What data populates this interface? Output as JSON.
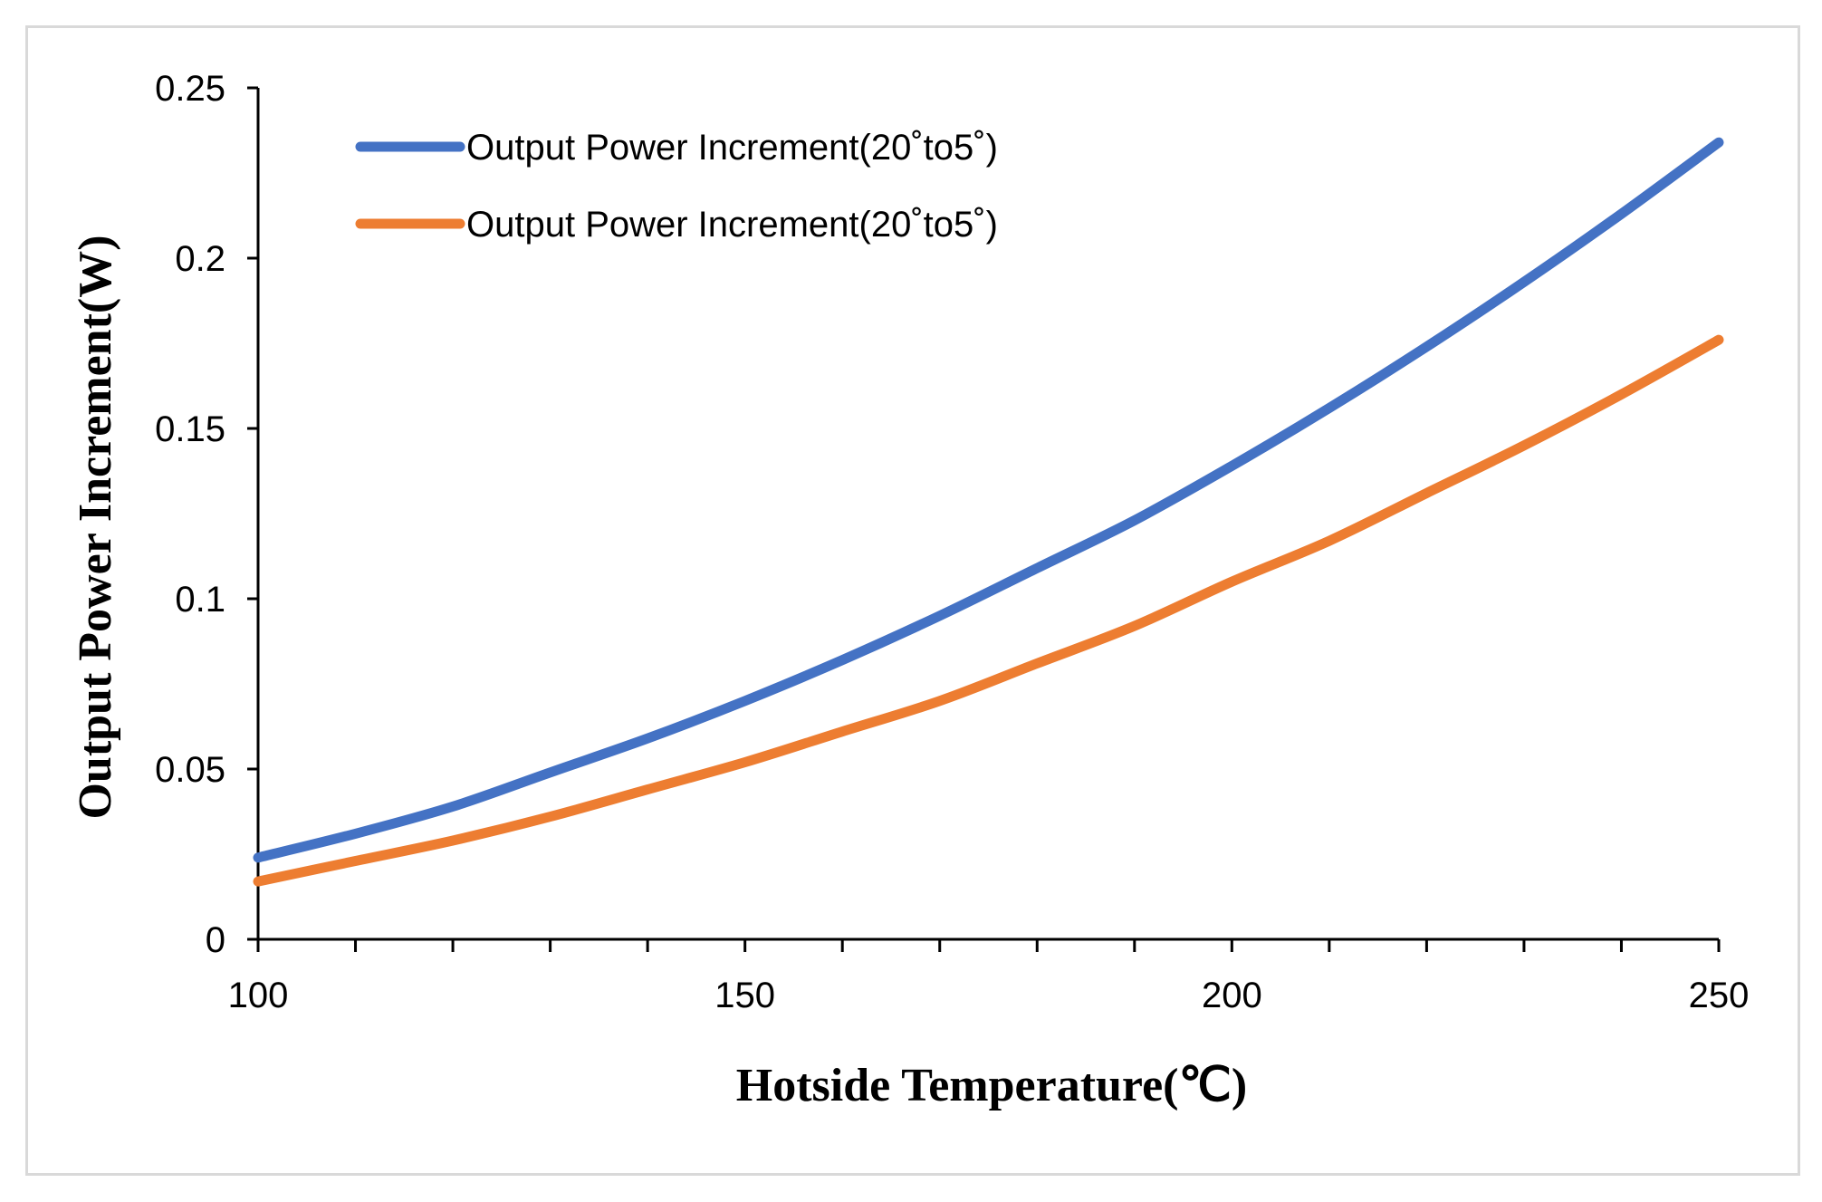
{
  "chart_data": {
    "type": "line",
    "title": "",
    "xlabel": "Hotside Temperature(℃)",
    "ylabel": "Output  Power Increment(W)",
    "xlim": [
      100,
      250
    ],
    "ylim": [
      0,
      0.25
    ],
    "x_ticks": [
      "100",
      "150",
      "200",
      "250"
    ],
    "y_ticks": [
      "0",
      "0.05",
      "0.1",
      "0.15",
      "0.2",
      "0.25"
    ],
    "x_minor_step": 10,
    "grid": false,
    "legend_position": "top-left",
    "x": [
      100,
      110,
      120,
      130,
      140,
      150,
      160,
      170,
      180,
      190,
      200,
      210,
      220,
      230,
      240,
      250
    ],
    "series": [
      {
        "name": "Output Power Increment(20˚to5˚)",
        "color": "#4472C4",
        "values": [
          0.024,
          0.031,
          0.039,
          0.049,
          0.059,
          0.07,
          0.082,
          0.095,
          0.109,
          0.123,
          0.139,
          0.156,
          0.174,
          0.193,
          0.213,
          0.234
        ]
      },
      {
        "name": "Output Power Increment(20˚to5˚)",
        "color": "#ED7D31",
        "values": [
          0.017,
          0.023,
          0.029,
          0.036,
          0.044,
          0.052,
          0.061,
          0.07,
          0.081,
          0.092,
          0.105,
          0.117,
          0.131,
          0.145,
          0.16,
          0.176
        ]
      }
    ]
  }
}
